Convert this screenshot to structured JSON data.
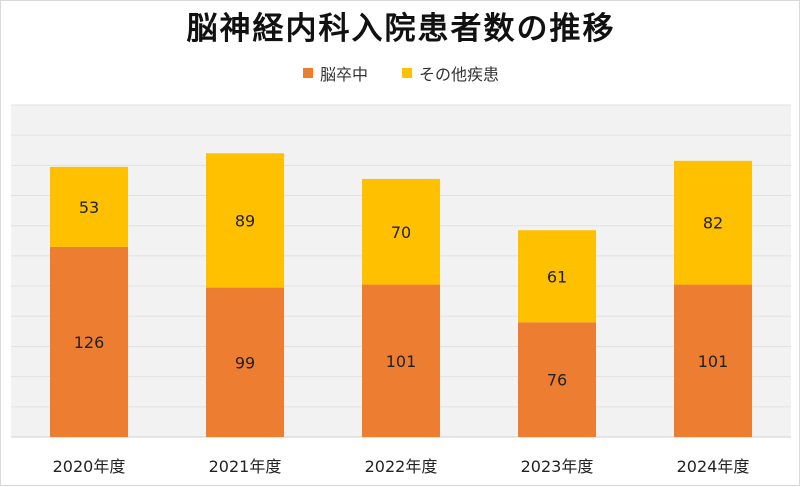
{
  "chart_data": {
    "type": "bar",
    "stacked": true,
    "title": "脳神経内科入院患者数の推移",
    "categories": [
      "2020年度",
      "2021年度",
      "2022年度",
      "2023年度",
      "2024年度"
    ],
    "series": [
      {
        "name": "脳卒中",
        "color": "#ed7d31",
        "values": [
          126,
          99,
          101,
          76,
          101
        ]
      },
      {
        "name": "その他疾患",
        "color": "#ffc000",
        "values": [
          53,
          89,
          70,
          61,
          82
        ]
      }
    ],
    "ylim": [
      0,
      220
    ],
    "grid": true,
    "legend_position": "top-center",
    "xlabel": "",
    "ylabel": ""
  }
}
